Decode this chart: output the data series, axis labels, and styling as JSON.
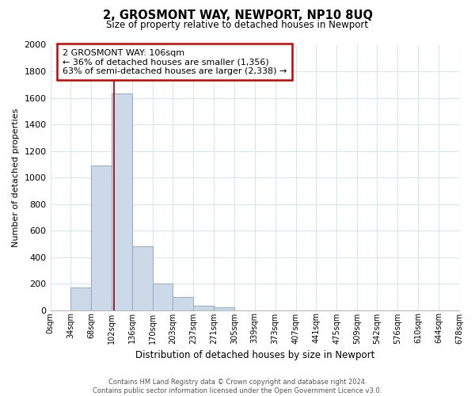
{
  "title": "2, GROSMONT WAY, NEWPORT, NP10 8UQ",
  "subtitle": "Size of property relative to detached houses in Newport",
  "xlabel": "Distribution of detached houses by size in Newport",
  "ylabel": "Number of detached properties",
  "bar_color": "#ccd9e8",
  "bar_edge_color": "#9ab0c8",
  "bin_labels": [
    "0sqm",
    "34sqm",
    "68sqm",
    "102sqm",
    "136sqm",
    "170sqm",
    "203sqm",
    "237sqm",
    "271sqm",
    "305sqm",
    "339sqm",
    "373sqm",
    "407sqm",
    "441sqm",
    "475sqm",
    "509sqm",
    "542sqm",
    "576sqm",
    "610sqm",
    "644sqm",
    "678sqm"
  ],
  "bar_heights": [
    0,
    170,
    1090,
    1630,
    480,
    200,
    100,
    35,
    20,
    0,
    0,
    0,
    0,
    0,
    0,
    0,
    0,
    0,
    0,
    0
  ],
  "bin_edges": [
    0,
    34,
    68,
    102,
    136,
    170,
    203,
    237,
    271,
    305,
    339,
    373,
    407,
    441,
    475,
    509,
    542,
    576,
    610,
    644,
    678
  ],
  "ylim": [
    0,
    2000
  ],
  "yticks": [
    0,
    200,
    400,
    600,
    800,
    1000,
    1200,
    1400,
    1600,
    1800,
    2000
  ],
  "annotation_title": "2 GROSMONT WAY: 106sqm",
  "annotation_line1": "← 36% of detached houses are smaller (1,356)",
  "annotation_line2": "63% of semi-detached houses are larger (2,338) →",
  "annotation_box_color": "#ffffff",
  "annotation_box_edge_color": "#cc0000",
  "property_line_x": 106,
  "property_line_color": "#990000",
  "footer_line1": "Contains HM Land Registry data © Crown copyright and database right 2024.",
  "footer_line2": "Contains public sector information licensed under the Open Government Licence v3.0.",
  "bg_color": "#ffffff",
  "grid_color": "#d8e4f0"
}
